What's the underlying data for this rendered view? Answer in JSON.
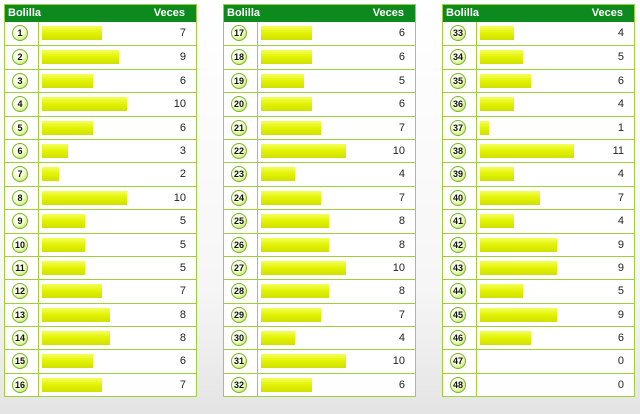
{
  "headers": {
    "ball": "Bolilla",
    "count": "Veces"
  },
  "max_count": 11,
  "colors": {
    "header_bg": "#0c8a1d",
    "border": "#9fcf3a",
    "bar": "#e2f200"
  },
  "columns": [
    [
      {
        "ball": "1",
        "count": 7
      },
      {
        "ball": "2",
        "count": 9
      },
      {
        "ball": "3",
        "count": 6
      },
      {
        "ball": "4",
        "count": 10
      },
      {
        "ball": "5",
        "count": 6
      },
      {
        "ball": "6",
        "count": 3
      },
      {
        "ball": "7",
        "count": 2
      },
      {
        "ball": "8",
        "count": 10
      },
      {
        "ball": "9",
        "count": 5
      },
      {
        "ball": "10",
        "count": 5
      },
      {
        "ball": "11",
        "count": 5
      },
      {
        "ball": "12",
        "count": 7
      },
      {
        "ball": "13",
        "count": 8
      },
      {
        "ball": "14",
        "count": 8
      },
      {
        "ball": "15",
        "count": 6
      },
      {
        "ball": "16",
        "count": 7
      }
    ],
    [
      {
        "ball": "17",
        "count": 6
      },
      {
        "ball": "18",
        "count": 6
      },
      {
        "ball": "19",
        "count": 5
      },
      {
        "ball": "20",
        "count": 6
      },
      {
        "ball": "21",
        "count": 7
      },
      {
        "ball": "22",
        "count": 10
      },
      {
        "ball": "23",
        "count": 4
      },
      {
        "ball": "24",
        "count": 7
      },
      {
        "ball": "25",
        "count": 8
      },
      {
        "ball": "26",
        "count": 8
      },
      {
        "ball": "27",
        "count": 10
      },
      {
        "ball": "28",
        "count": 8
      },
      {
        "ball": "29",
        "count": 7
      },
      {
        "ball": "30",
        "count": 4
      },
      {
        "ball": "31",
        "count": 10
      },
      {
        "ball": "32",
        "count": 6
      }
    ],
    [
      {
        "ball": "33",
        "count": 4
      },
      {
        "ball": "34",
        "count": 5
      },
      {
        "ball": "35",
        "count": 6
      },
      {
        "ball": "36",
        "count": 4
      },
      {
        "ball": "37",
        "count": 1
      },
      {
        "ball": "38",
        "count": 11
      },
      {
        "ball": "39",
        "count": 4
      },
      {
        "ball": "40",
        "count": 7
      },
      {
        "ball": "41",
        "count": 4
      },
      {
        "ball": "42",
        "count": 9
      },
      {
        "ball": "43",
        "count": 9
      },
      {
        "ball": "44",
        "count": 5
      },
      {
        "ball": "45",
        "count": 9
      },
      {
        "ball": "46",
        "count": 6
      },
      {
        "ball": "47",
        "count": 0
      },
      {
        "ball": "48",
        "count": 0
      }
    ]
  ]
}
